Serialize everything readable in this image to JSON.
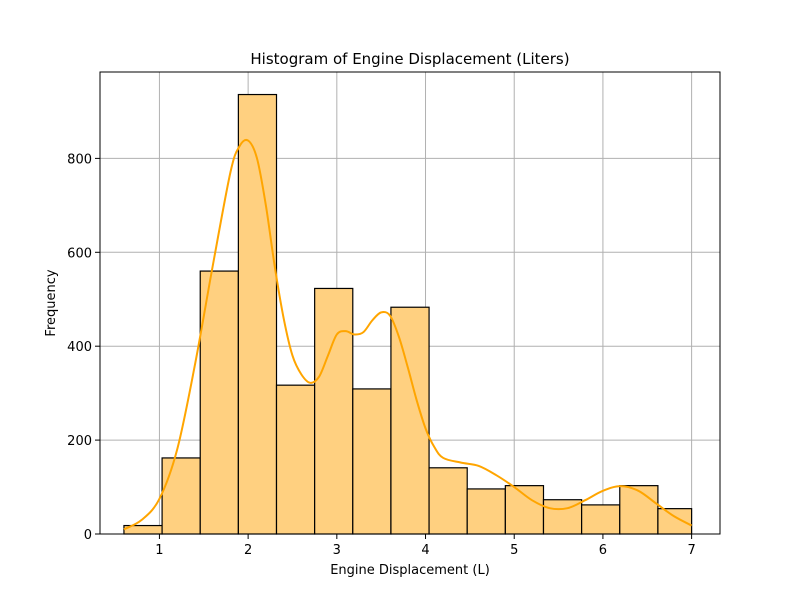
{
  "chart_data": {
    "type": "bar",
    "title": "Histogram of Engine Displacement (Liters)",
    "xlabel": "Engine Displacement (L)",
    "ylabel": "Frequency",
    "xlim": [
      0.33,
      7.32
    ],
    "ylim": [
      0,
      984
    ],
    "x_ticks": [
      1,
      2,
      3,
      4,
      5,
      6,
      7
    ],
    "y_ticks": [
      0,
      200,
      400,
      600,
      800
    ],
    "grid": true,
    "bin_edges": [
      0.6,
      1.03,
      1.46,
      1.89,
      2.32,
      2.75,
      3.18,
      3.61,
      4.04,
      4.47,
      4.9,
      5.33,
      5.76,
      6.19,
      6.62,
      7.0
    ],
    "values": [
      18,
      162,
      560,
      936,
      317,
      523,
      309,
      483,
      141,
      96,
      103,
      73,
      62,
      103,
      54
    ],
    "kde": {
      "x": [
        0.6,
        0.8,
        1.0,
        1.2,
        1.4,
        1.6,
        1.8,
        1.9,
        2.0,
        2.1,
        2.2,
        2.3,
        2.4,
        2.5,
        2.6,
        2.7,
        2.8,
        2.9,
        3.0,
        3.1,
        3.2,
        3.3,
        3.4,
        3.5,
        3.6,
        3.7,
        3.8,
        3.9,
        4.0,
        4.1,
        4.2,
        4.4,
        4.6,
        4.8,
        5.0,
        5.2,
        5.4,
        5.6,
        5.8,
        6.0,
        6.2,
        6.4,
        6.6,
        6.8,
        7.0
      ],
      "y": [
        10,
        30,
        75,
        180,
        360,
        570,
        770,
        825,
        838,
        800,
        700,
        570,
        460,
        380,
        340,
        322,
        335,
        380,
        425,
        432,
        425,
        430,
        455,
        472,
        465,
        420,
        355,
        285,
        225,
        185,
        162,
        152,
        145,
        125,
        100,
        72,
        55,
        55,
        72,
        92,
        102,
        92,
        65,
        38,
        18
      ]
    },
    "bar_color": "#ffd080",
    "bar_edge_color": "#000000",
    "line_color": "#ffa500"
  }
}
